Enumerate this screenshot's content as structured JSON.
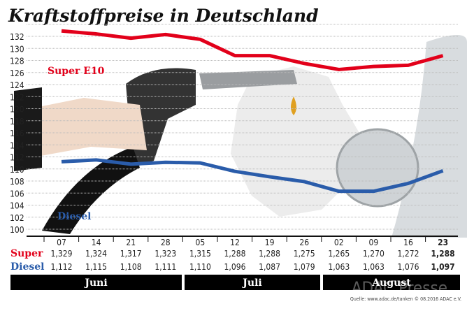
{
  "chart_data": {
    "type": "line",
    "title": "Kraftstoffpreise in Deutschland",
    "categories": [
      "07",
      "14",
      "21",
      "28",
      "05",
      "12",
      "19",
      "26",
      "02",
      "09",
      "16",
      "23"
    ],
    "months": [
      "Juni",
      "Juli",
      "August"
    ],
    "ylim": [
      100,
      132
    ],
    "yticks": [
      100,
      102,
      104,
      106,
      108,
      110,
      112,
      114,
      116,
      118,
      120,
      122,
      124,
      126,
      128,
      130,
      132
    ],
    "grid": true,
    "series": [
      {
        "name": "Super E10",
        "row_label": "Super",
        "color": "#e2001a",
        "values": [
          132.9,
          132.4,
          131.7,
          132.3,
          131.5,
          128.8,
          128.8,
          127.5,
          126.5,
          127.0,
          127.2,
          128.8
        ],
        "table": [
          "1,329",
          "1,324",
          "1,317",
          "1,323",
          "1,315",
          "1,288",
          "1,288",
          "1,275",
          "1,265",
          "1,270",
          "1,272",
          "1,288"
        ]
      },
      {
        "name": "Diesel",
        "row_label": "Diesel",
        "color": "#2a5caa",
        "values": [
          111.2,
          111.5,
          110.8,
          111.1,
          111.0,
          109.6,
          108.7,
          107.9,
          106.3,
          106.3,
          107.6,
          109.7
        ],
        "table": [
          "1,112",
          "1,115",
          "1,108",
          "1,111",
          "1,110",
          "1,096",
          "1,087",
          "1,079",
          "1,063",
          "1,063",
          "1,076",
          "1,097"
        ]
      }
    ]
  },
  "source": "Quelle: www.adac.de/tanken   © 08.2016  ADAC e.V.",
  "watermark": "ADAC Presse"
}
